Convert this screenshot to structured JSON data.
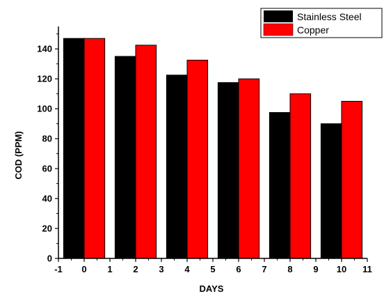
{
  "chart_data": {
    "type": "bar",
    "xlabel": "DAYS",
    "ylabel": "COD (PPM)",
    "xlim": [
      -1,
      11
    ],
    "ylim": [
      0,
      155
    ],
    "x_ticks": [
      -1,
      0,
      1,
      2,
      3,
      4,
      5,
      6,
      7,
      8,
      9,
      10,
      11
    ],
    "y_ticks": [
      0,
      20,
      40,
      60,
      80,
      100,
      120,
      140
    ],
    "categories": [
      0,
      2,
      4,
      6,
      8,
      10
    ],
    "series": [
      {
        "name": "Stainless Steel",
        "color": "#000000",
        "values": [
          147,
          135,
          122.5,
          117.5,
          97.5,
          90
        ]
      },
      {
        "name": "Copper",
        "color": "#ff0000",
        "values": [
          147,
          142.5,
          132.5,
          120,
          110,
          105
        ]
      }
    ],
    "legend_position": "top-right",
    "grid": false
  }
}
